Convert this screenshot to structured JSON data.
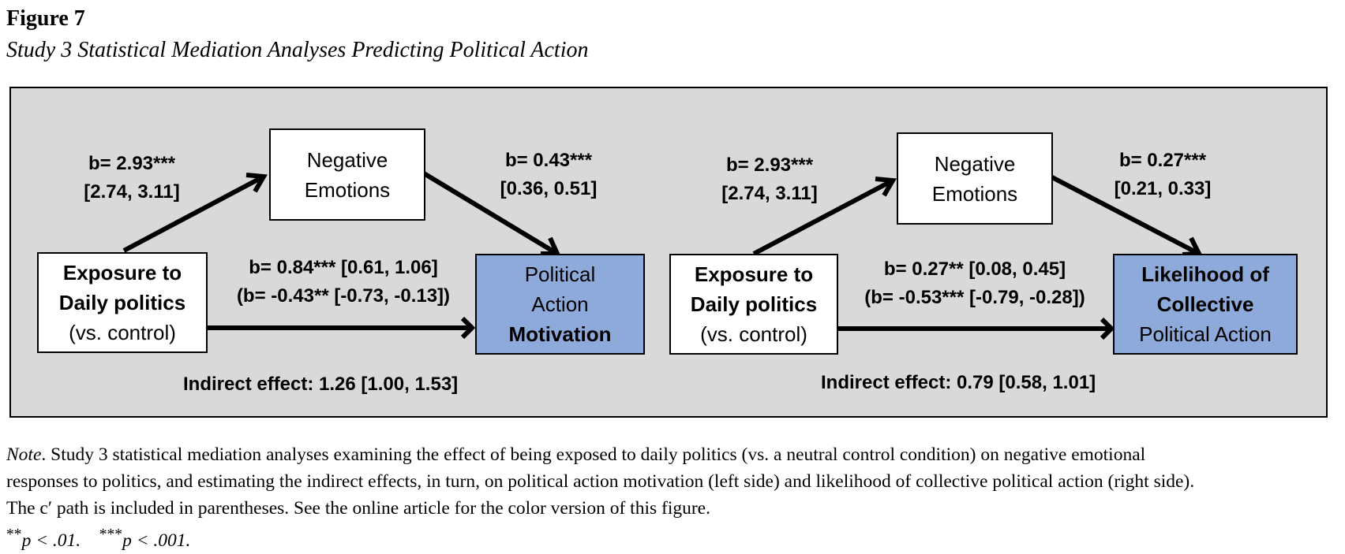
{
  "figure": {
    "number": "Figure 7",
    "title": "Study 3 Statistical Mediation Analyses Predicting Political Action"
  },
  "left_model": {
    "predictor": {
      "line1": "Exposure to",
      "line2": "Daily politics",
      "line3": "(vs. control)"
    },
    "mediator": {
      "line1": "Negative",
      "line2": "Emotions"
    },
    "outcome": {
      "line1": "Political",
      "line2": "Action",
      "line3": "Motivation"
    },
    "path_a": {
      "coef": "b= 2.93***",
      "ci": "[2.74, 3.11]"
    },
    "path_b": {
      "coef": "b= 0.43***",
      "ci": "[0.36, 0.51]"
    },
    "path_c": "b= 0.84*** [0.61, 1.06]",
    "path_c_prime": "(b= -0.43** [-0.73, -0.13])",
    "indirect_effect": "Indirect effect: 1.26 [1.00, 1.53]"
  },
  "right_model": {
    "predictor": {
      "line1": "Exposure to",
      "line2": "Daily politics",
      "line3": "(vs. control)"
    },
    "mediator": {
      "line1": "Negative",
      "line2": "Emotions"
    },
    "outcome": {
      "line1": "Likelihood of",
      "line2": "Collective",
      "line3": "Political Action"
    },
    "path_a": {
      "coef": "b= 2.93***",
      "ci": "[2.74, 3.11]"
    },
    "path_b": {
      "coef": "b= 0.27***",
      "ci": "[0.21, 0.33]"
    },
    "path_c": "b= 0.27** [0.08, 0.45]",
    "path_c_prime": "(b= -0.53*** [-0.79, -0.28])",
    "indirect_effect": "Indirect effect: 0.79 [0.58, 1.01]"
  },
  "note": {
    "label": "Note",
    "line1_rest": ".   Study 3 statistical mediation analyses examining the effect of being exposed to daily politics (vs. a neutral control condition) on negative emotional",
    "line2": "responses to politics, and estimating the indirect effects, in turn, on political action motivation (left side) and likelihood of collective political action (right side).",
    "line3": "The c′ path is included in parentheses. See the online article for the color version of this figure.",
    "sig1_stars": "**",
    "sig1_text": "p < .01.",
    "sig2_stars": "***",
    "sig2_text": "p < .001."
  },
  "colors": {
    "panel_background": "#d9d9d9",
    "outcome_box": "#8eaadb",
    "box": "#ffffff"
  }
}
